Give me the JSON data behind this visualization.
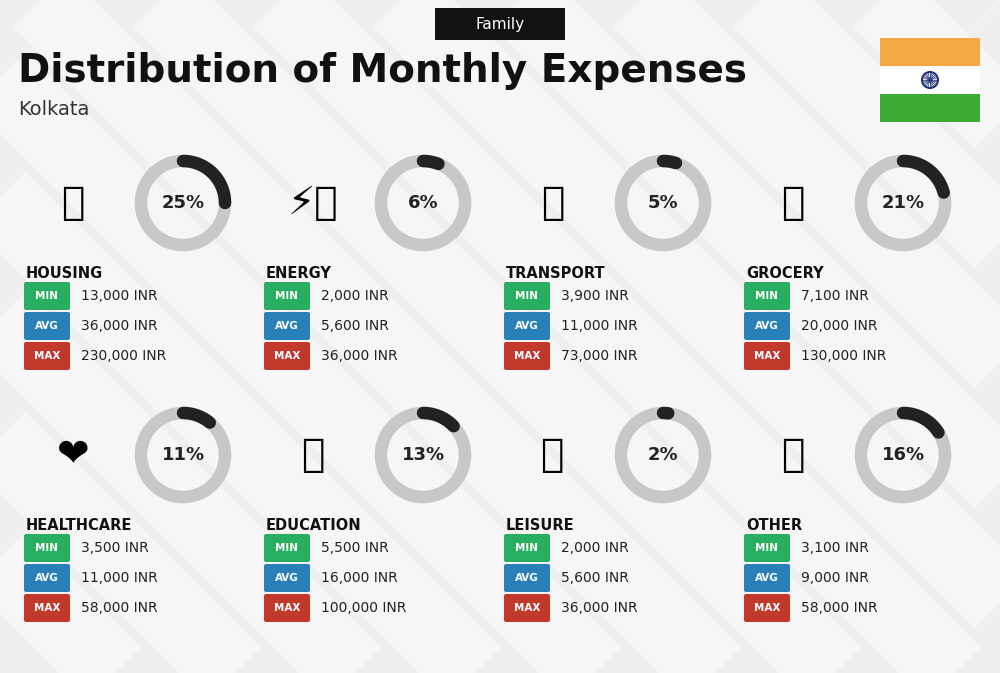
{
  "title": "Distribution of Monthly Expenses",
  "subtitle": "Kolkata",
  "header_label": "Family",
  "background_color": "#efefef",
  "categories": [
    {
      "name": "HOUSING",
      "percent": 25,
      "min": "13,000 INR",
      "avg": "36,000 INR",
      "max": "230,000 INR",
      "row": 0,
      "col": 0
    },
    {
      "name": "ENERGY",
      "percent": 6,
      "min": "2,000 INR",
      "avg": "5,600 INR",
      "max": "36,000 INR",
      "row": 0,
      "col": 1
    },
    {
      "name": "TRANSPORT",
      "percent": 5,
      "min": "3,900 INR",
      "avg": "11,000 INR",
      "max": "73,000 INR",
      "row": 0,
      "col": 2
    },
    {
      "name": "GROCERY",
      "percent": 21,
      "min": "7,100 INR",
      "avg": "20,000 INR",
      "max": "130,000 INR",
      "row": 0,
      "col": 3
    },
    {
      "name": "HEALTHCARE",
      "percent": 11,
      "min": "3,500 INR",
      "avg": "11,000 INR",
      "max": "58,000 INR",
      "row": 1,
      "col": 0
    },
    {
      "name": "EDUCATION",
      "percent": 13,
      "min": "5,500 INR",
      "avg": "16,000 INR",
      "max": "100,000 INR",
      "row": 1,
      "col": 1
    },
    {
      "name": "LEISURE",
      "percent": 2,
      "min": "2,000 INR",
      "avg": "5,600 INR",
      "max": "36,000 INR",
      "row": 1,
      "col": 2
    },
    {
      "name": "OTHER",
      "percent": 16,
      "min": "3,100 INR",
      "avg": "9,000 INR",
      "max": "58,000 INR",
      "row": 1,
      "col": 3
    }
  ],
  "min_color": "#27ae60",
  "avg_color": "#2980b9",
  "max_color": "#c0392b",
  "arc_bg_color": "#c8c8c8",
  "arc_fill_color": "#222222",
  "india_flag_orange": "#F4A942",
  "india_flag_white": "#FFFFFF",
  "india_flag_green": "#3DAA35",
  "india_chakra_color": "#22337A",
  "diag_stripe_color": "#ffffff",
  "family_box_color": "#111111",
  "family_text_color": "#ffffff"
}
